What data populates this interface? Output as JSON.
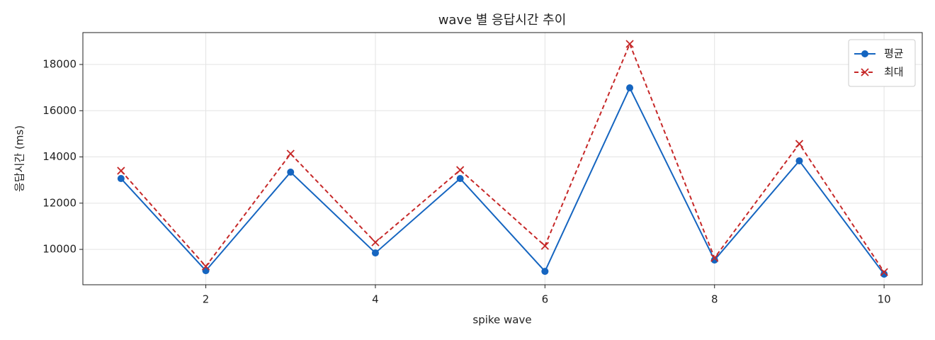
{
  "chart_data": {
    "type": "line",
    "title": "wave 별 응답시간 추이",
    "xlabel": "spike wave",
    "ylabel": "응답시간 (ms)",
    "x": [
      1,
      2,
      3,
      4,
      5,
      6,
      7,
      8,
      9,
      10
    ],
    "series": [
      {
        "name": "평균",
        "color": "#1565c0",
        "marker": "o",
        "linestyle": "solid",
        "values": [
          13065,
          9080,
          13341,
          9847,
          13065,
          9050,
          16988,
          9540,
          13831,
          8927
        ]
      },
      {
        "name": "최대",
        "color": "#c62828",
        "marker": "x",
        "linestyle": "dashed",
        "values": [
          13402,
          9264,
          14138,
          10306,
          13433,
          10153,
          18889,
          9632,
          14567,
          9019
        ]
      }
    ],
    "xlim": [
      0.55,
      10.45
    ],
    "xticks": [
      2,
      4,
      6,
      8,
      10
    ],
    "ylim": [
      8470,
      19380
    ],
    "yticks": [
      10000,
      12000,
      14000,
      16000,
      18000
    ],
    "grid": true,
    "legend": "upper right"
  }
}
